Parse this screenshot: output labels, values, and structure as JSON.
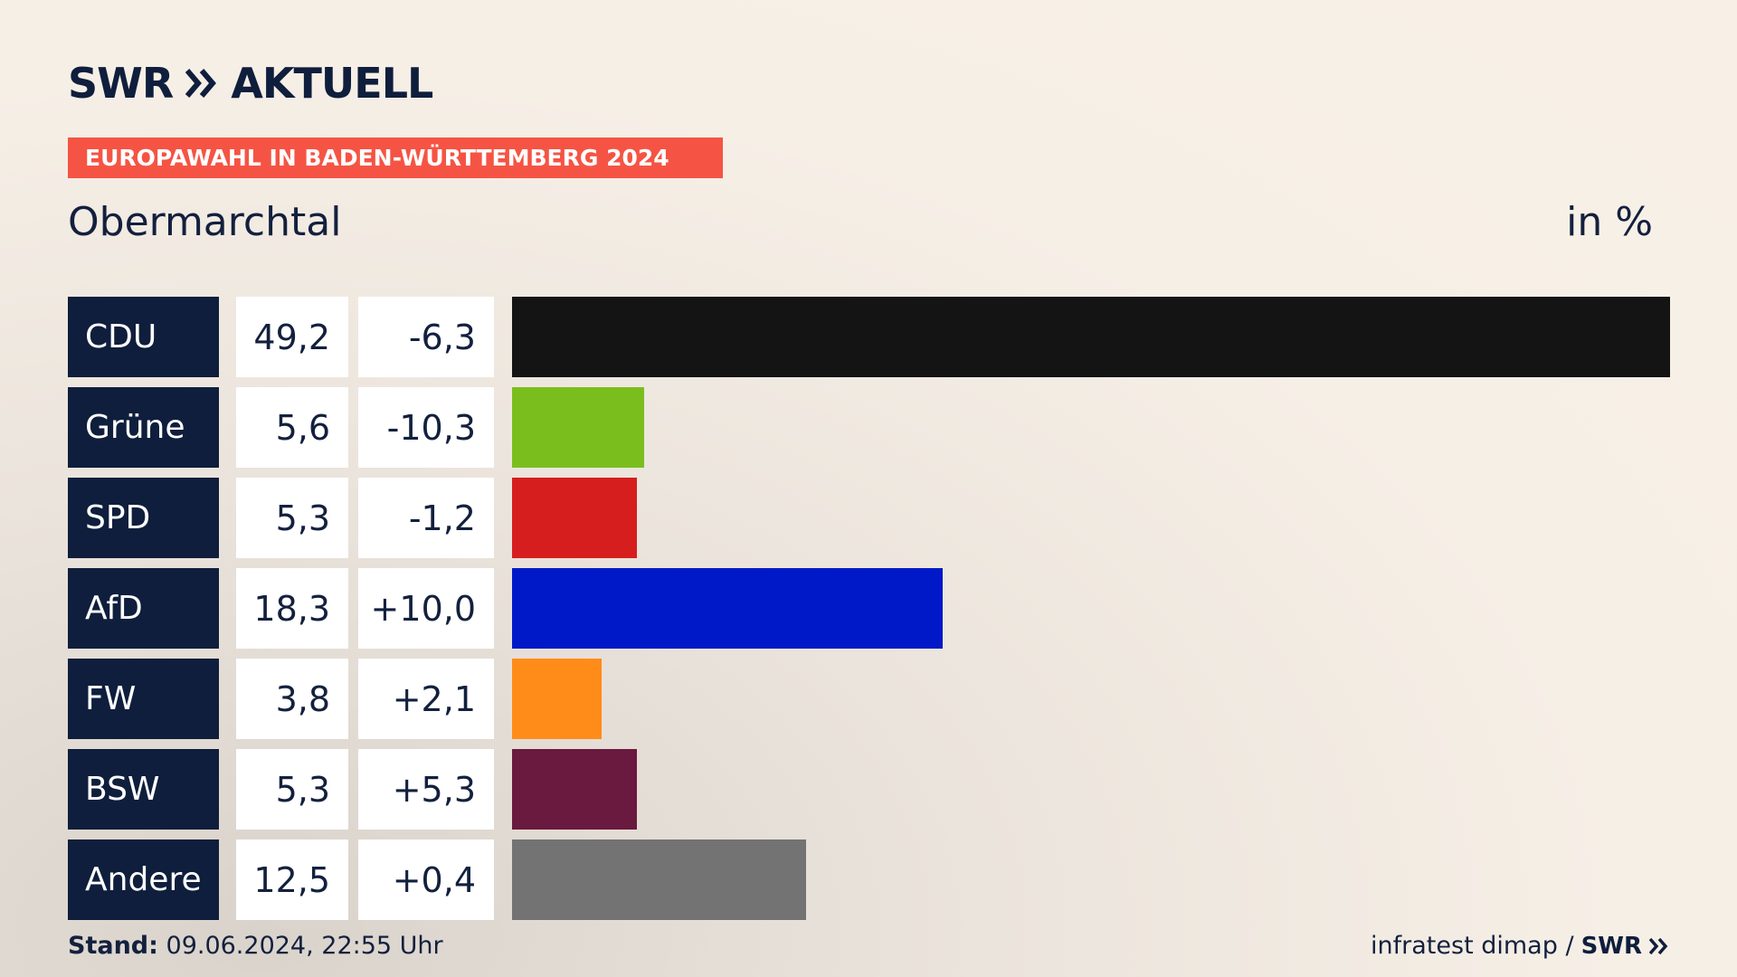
{
  "header": {
    "logo_text": "SWR",
    "logo_suffix": "AKTUELL",
    "tag": "EUROPAWAHL IN BADEN-WÜRTTEMBERG 2024",
    "location": "Obermarchtal",
    "unit": "in %"
  },
  "footer": {
    "stand_label": "Stand:",
    "stand_value": "09.06.2024, 22:55 Uhr",
    "source": "infratest dimap /",
    "source_logo": "SWR"
  },
  "chart_data": {
    "type": "bar",
    "orientation": "horizontal",
    "categories": [
      "CDU",
      "Grüne",
      "SPD",
      "AfD",
      "FW",
      "BSW",
      "Andere"
    ],
    "values": [
      49.2,
      5.6,
      5.3,
      18.3,
      3.8,
      5.3,
      12.5
    ],
    "value_labels": [
      "49,2",
      "5,6",
      "5,3",
      "18,3",
      "3,8",
      "5,3",
      "12,5"
    ],
    "diffs": [
      -6.3,
      -10.3,
      -1.2,
      10.0,
      2.1,
      5.3,
      0.4
    ],
    "diff_labels": [
      "-6,3",
      "-10,3",
      "-1,2",
      "+10,0",
      "+2,1",
      "+5,3",
      "+0,4"
    ],
    "colors": [
      "#141414",
      "#7abe1e",
      "#d61e1e",
      "#0019c8",
      "#ff8c19",
      "#6a1a3e",
      "#737373"
    ],
    "xlim": [
      0,
      49.2
    ]
  }
}
